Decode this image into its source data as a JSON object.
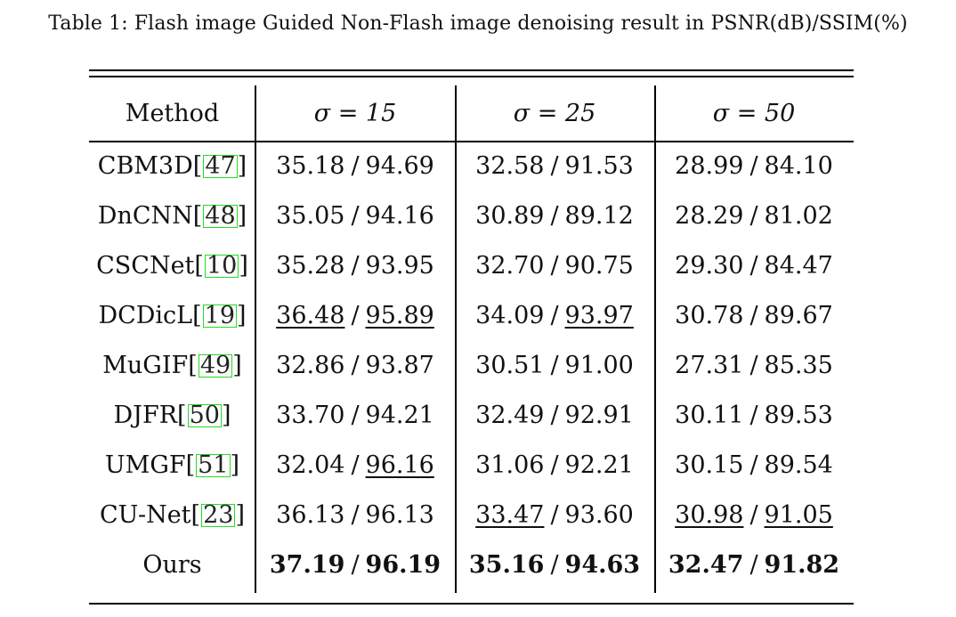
{
  "caption": "Table 1: Flash image Guided Non-Flash image denoising result in PSNR(dB)/SSIM(%)",
  "table": {
    "headers": [
      "Method",
      "σ = 15",
      "σ = 25",
      "σ = 50"
    ],
    "rows": [
      {
        "method": "CBM3D",
        "ref": "47",
        "vals": [
          [
            "35.18",
            "94.69"
          ],
          [
            "32.58",
            "91.53"
          ],
          [
            "28.99",
            "84.10"
          ]
        ]
      },
      {
        "method": "DnCNN",
        "ref": "48",
        "vals": [
          [
            "35.05",
            "94.16"
          ],
          [
            "30.89",
            "89.12"
          ],
          [
            "28.29",
            "81.02"
          ]
        ]
      },
      {
        "method": "CSCNet",
        "ref": "10",
        "vals": [
          [
            "35.28",
            "93.95"
          ],
          [
            "32.70",
            "90.75"
          ],
          [
            "29.30",
            "84.47"
          ]
        ]
      },
      {
        "method": "DCDicL",
        "ref": "19",
        "vals": [
          [
            "36.48",
            "95.89"
          ],
          [
            "34.09",
            "93.97"
          ],
          [
            "30.78",
            "89.67"
          ]
        ]
      },
      {
        "method": "MuGIF",
        "ref": "49",
        "vals": [
          [
            "32.86",
            "93.87"
          ],
          [
            "30.51",
            "91.00"
          ],
          [
            "27.31",
            "85.35"
          ]
        ]
      },
      {
        "method": "DJFR",
        "ref": "50",
        "vals": [
          [
            "33.70",
            "94.21"
          ],
          [
            "32.49",
            "92.91"
          ],
          [
            "30.11",
            "89.53"
          ]
        ]
      },
      {
        "method": "UMGF",
        "ref": "51",
        "vals": [
          [
            "32.04",
            "96.16"
          ],
          [
            "31.06",
            "92.21"
          ],
          [
            "30.15",
            "89.54"
          ]
        ]
      },
      {
        "method": "CU-Net",
        "ref": "23",
        "vals": [
          [
            "36.13",
            "96.13"
          ],
          [
            "33.47",
            "93.60"
          ],
          [
            "30.98",
            "91.05"
          ]
        ]
      },
      {
        "method": "Ours",
        "ref": "",
        "vals": [
          [
            "37.19",
            "96.19"
          ],
          [
            "35.16",
            "94.63"
          ],
          [
            "32.47",
            "91.82"
          ]
        ]
      }
    ],
    "separator": "/",
    "style_notes": {
      "best": "bold (Ours row)",
      "second_best": "underlined"
    }
  }
}
